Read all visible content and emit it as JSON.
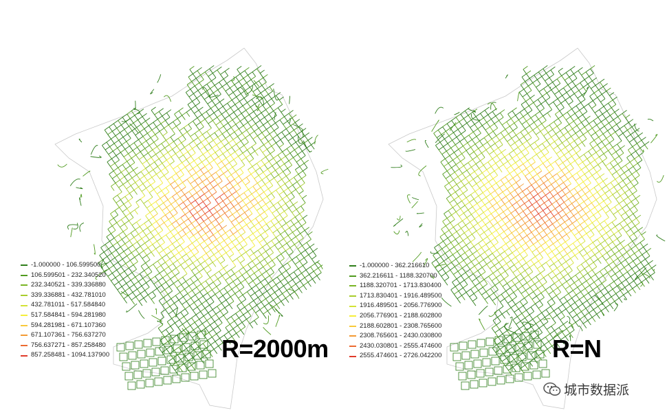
{
  "panels": [
    {
      "label": "R=2000m",
      "legend": [
        {
          "range": "-1.000000 - 106.599500",
          "color": "#2e7d1a"
        },
        {
          "range": "106.599501 - 232.340520",
          "color": "#4f9a1e"
        },
        {
          "range": "232.340521 - 339.336880",
          "color": "#79b424"
        },
        {
          "range": "339.336881 - 432.781010",
          "color": "#a8cc2c"
        },
        {
          "range": "432.781011 - 517.584840",
          "color": "#d3e236"
        },
        {
          "range": "517.584841 - 594.281980",
          "color": "#f5ee3a"
        },
        {
          "range": "594.281981 - 671.107360",
          "color": "#f8c93a"
        },
        {
          "range": "671.107361 - 756.637270",
          "color": "#f39a34"
        },
        {
          "range": "756.637271 - 857.258480",
          "color": "#ec6a30"
        },
        {
          "range": "857.258481 - 1094.137900",
          "color": "#e03a2a"
        }
      ]
    },
    {
      "label": "R=N",
      "legend": [
        {
          "range": "-1.000000 - 362.216610",
          "color": "#2e7d1a"
        },
        {
          "range": "362.216611 - 1188.320700",
          "color": "#4f9a1e"
        },
        {
          "range": "1188.320701 - 1713.830400",
          "color": "#79b424"
        },
        {
          "range": "1713.830401 - 1916.489500",
          "color": "#a8cc2c"
        },
        {
          "range": "1916.489501 - 2056.776900",
          "color": "#d3e236"
        },
        {
          "range": "2056.776901 - 2188.602800",
          "color": "#f5ee3a"
        },
        {
          "range": "2188.602801 - 2308.765600",
          "color": "#f8c93a"
        },
        {
          "range": "2308.765601 - 2430.030800",
          "color": "#f39a34"
        },
        {
          "range": "2430.030801 - 2555.474600",
          "color": "#ec6a30"
        },
        {
          "range": "2555.474601 - 2726.042200",
          "color": "#e03a2a"
        }
      ]
    }
  ],
  "watermark": {
    "text": "城市数据派",
    "icon": "wechat-icon"
  }
}
